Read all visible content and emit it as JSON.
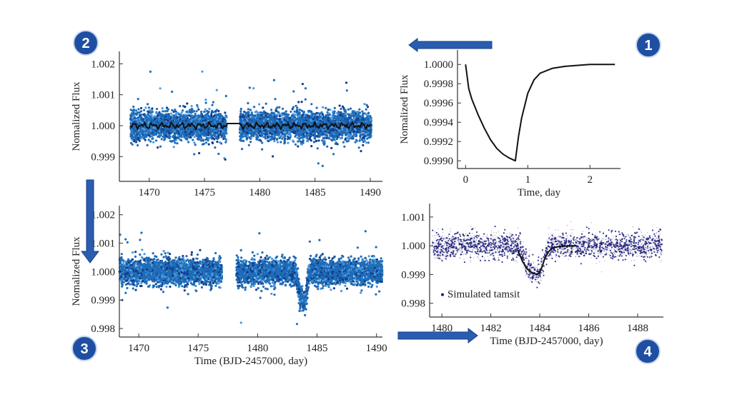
{
  "badges": [
    "1",
    "2",
    "3",
    "4"
  ],
  "arrows": [
    {
      "from": "1",
      "to": "2",
      "direction": "left"
    },
    {
      "from": "2",
      "to": "3",
      "direction": "down"
    },
    {
      "from": "3",
      "to": "4",
      "direction": "right"
    }
  ],
  "colors": {
    "scatter_blue": "#1f6db8",
    "scatter_dark": "#123f8c",
    "scatter_light": "#4d9be0",
    "navy": "#1b1b78",
    "badge": "#1e4fa3",
    "arrow": "#2a5db0",
    "curve": "#111111"
  },
  "chart_data": [
    {
      "panel": "1",
      "type": "line",
      "xlabel": "Time, day",
      "ylabel": "Nomalized Flux",
      "xlim": [
        -0.13,
        2.49
      ],
      "ylim": [
        0.99892,
        1.00015
      ],
      "xticks": [
        "0",
        "1",
        "2"
      ],
      "xtick_values": [
        0,
        1,
        2
      ],
      "yticks": [
        "1.0000",
        "0.9998",
        "0.9996",
        "0.9994",
        "0.9992",
        "0.9990"
      ],
      "ytick_values": [
        1.0,
        0.9998,
        0.9996,
        0.9994,
        0.9992,
        0.999
      ],
      "model_curve": {
        "x": [
          0,
          0.05,
          0.1,
          0.2,
          0.3,
          0.4,
          0.5,
          0.6,
          0.7,
          0.8,
          0.85,
          0.9,
          1.0,
          1.1,
          1.2,
          1.4,
          1.6,
          2.0,
          2.4
        ],
        "y": [
          1.0,
          0.99975,
          0.99964,
          0.99948,
          0.99934,
          0.99922,
          0.99913,
          0.99907,
          0.99903,
          0.999,
          0.99925,
          0.99944,
          0.9997,
          0.99984,
          0.99991,
          0.99996,
          0.99998,
          1.0,
          1.0
        ]
      }
    },
    {
      "panel": "2",
      "type": "scatter",
      "xlabel": "",
      "ylabel": "Nomalized Flux",
      "xlim": [
        1467.3,
        1491.1
      ],
      "ylim": [
        0.9982,
        1.0024
      ],
      "xticks": [
        "1470",
        "1475",
        "1480",
        "1485",
        "1490"
      ],
      "xtick_values": [
        1470,
        1475,
        1480,
        1485,
        1490
      ],
      "yticks": [
        "1.002",
        "1.001",
        "1.000",
        "0.999"
      ],
      "ytick_values": [
        1.002,
        1.001,
        1.0,
        0.999
      ],
      "scatter_segments": [
        [
          1468.3,
          1477.0
        ],
        [
          1478.2,
          1490.1
        ]
      ],
      "baseline": 1.0
    },
    {
      "panel": "3",
      "type": "scatter",
      "xlabel": "Time (BJD-2457000, day)",
      "ylabel": "Nomalized Flux",
      "xlim": [
        1468.37,
        1490.5
      ],
      "ylim": [
        0.9977,
        1.00232
      ],
      "xticks": [
        "1470",
        "1475",
        "1480",
        "1485",
        "1490"
      ],
      "xtick_values": [
        1470,
        1475,
        1480,
        1485,
        1490
      ],
      "yticks": [
        "1.002",
        "1.001",
        "1.000",
        "0.999",
        "0.998"
      ],
      "ytick_values": [
        1.002,
        1.001,
        1.0,
        0.999,
        0.998
      ],
      "scatter_segments": [
        [
          1468.37,
          1477.0
        ],
        [
          1478.2,
          1490.5
        ]
      ],
      "baseline": 1.0,
      "transit": {
        "start": 1483.2,
        "min_time": 1483.9,
        "end": 1484.3,
        "min_flux": 0.9985
      }
    },
    {
      "panel": "4",
      "type": "scatter",
      "xlabel": "Time (BJD-2457000, day)",
      "ylabel": "",
      "xlim": [
        1479.5,
        1489.05
      ],
      "ylim": [
        0.99752,
        1.00147
      ],
      "xticks": [
        "1480",
        "1482",
        "1484",
        "1486",
        "1488"
      ],
      "xtick_values": [
        1480,
        1482,
        1484,
        1486,
        1488
      ],
      "yticks": [
        "1.001",
        "1.000",
        "0.999",
        "0.998"
      ],
      "ytick_values": [
        1.001,
        1.0,
        0.999,
        0.998
      ],
      "legend": {
        "label": "Simulated tamsit",
        "placement": "bottom-left"
      },
      "scatter_segments": [
        [
          1479.6,
          1489.0
        ]
      ],
      "model_curve": {
        "x": [
          1483.1,
          1483.3,
          1483.5,
          1483.7,
          1483.9,
          1484.0,
          1484.1,
          1484.2,
          1484.35,
          1484.5,
          1484.8,
          1485.2,
          1485.5
        ],
        "y": [
          0.99985,
          0.99945,
          0.99918,
          0.99905,
          0.999,
          0.99908,
          0.99928,
          0.99955,
          0.99978,
          0.99992,
          0.99998,
          1.0,
          1.0
        ]
      }
    }
  ]
}
